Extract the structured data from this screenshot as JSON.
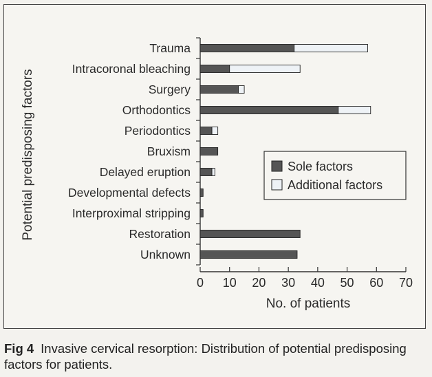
{
  "caption": {
    "label": "Fig 4",
    "text": "Invasive cervical resorption: Distribution of potential predisposing factors for patients."
  },
  "colors": {
    "sole": "#555555",
    "additional": "#eef2f6",
    "bar_edge": "#222222"
  },
  "chart_data": {
    "type": "bar",
    "orientation": "horizontal",
    "stacked": true,
    "title": "",
    "xlabel": "No. of patients",
    "ylabel": "Potential predisposing factors",
    "xlim": [
      0,
      70
    ],
    "xticks": [
      "0",
      "10",
      "20",
      "30",
      "40",
      "50",
      "60",
      "70"
    ],
    "categories": [
      "Trauma",
      "Intracoronal bleaching",
      "Surgery",
      "Orthodontics",
      "Periodontics",
      "Bruxism",
      "Delayed eruption",
      "Developmental defects",
      "Interproximal stripping",
      "Restoration",
      "Unknown"
    ],
    "series": [
      {
        "name": "Sole factors",
        "values": [
          32,
          10,
          13,
          47,
          4,
          6,
          4,
          1,
          1,
          34,
          33
        ]
      },
      {
        "name": "Additional factors",
        "values": [
          25,
          24,
          2,
          11,
          2,
          0,
          1,
          0,
          0,
          0,
          0
        ]
      }
    ],
    "legend": "center-right",
    "grid": false
  }
}
